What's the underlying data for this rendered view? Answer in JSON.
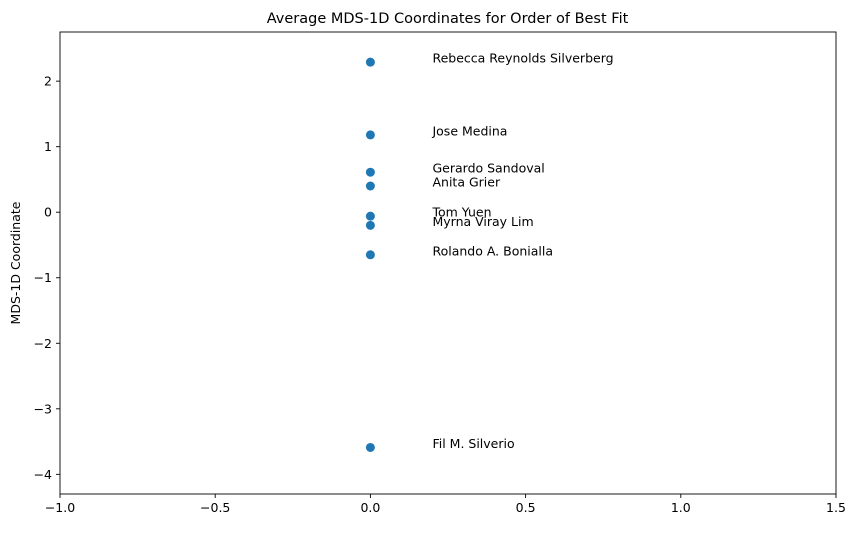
{
  "chart_data": {
    "type": "scatter",
    "title": "Average MDS-1D Coordinates for Order of Best Fit",
    "xlabel": "",
    "ylabel": "MDS-1D Coordinate",
    "xlim": [
      -1.0,
      1.5
    ],
    "ylim": [
      -4.3,
      2.75
    ],
    "xticks": [
      -1.0,
      -0.5,
      0.0,
      0.5,
      1.0,
      1.5
    ],
    "xtick_labels": [
      "−1.0",
      "−0.5",
      "0.0",
      "0.5",
      "1.0",
      "1.5"
    ],
    "yticks": [
      -4,
      -3,
      -2,
      -1,
      0,
      1,
      2
    ],
    "ytick_labels": [
      "−4",
      "−3",
      "−2",
      "−1",
      "0",
      "1",
      "2"
    ],
    "grid": false,
    "marker_color": "#1f77b4",
    "points": [
      {
        "label": "Rebecca Reynolds Silverberg",
        "x": 0.0,
        "y": 2.29
      },
      {
        "label": "Jose Medina",
        "x": 0.0,
        "y": 1.18
      },
      {
        "label": "Gerardo Sandoval",
        "x": 0.0,
        "y": 0.61
      },
      {
        "label": "Anita Grier",
        "x": 0.0,
        "y": 0.4
      },
      {
        "label": "Tom Yuen",
        "x": 0.0,
        "y": -0.06
      },
      {
        "label": "Myrna Viray Lim",
        "x": 0.0,
        "y": -0.2
      },
      {
        "label": "Rolando A. Bonialla",
        "x": 0.0,
        "y": -0.65
      },
      {
        "label": "Fil M. Silverio",
        "x": 0.0,
        "y": -3.59
      }
    ]
  }
}
